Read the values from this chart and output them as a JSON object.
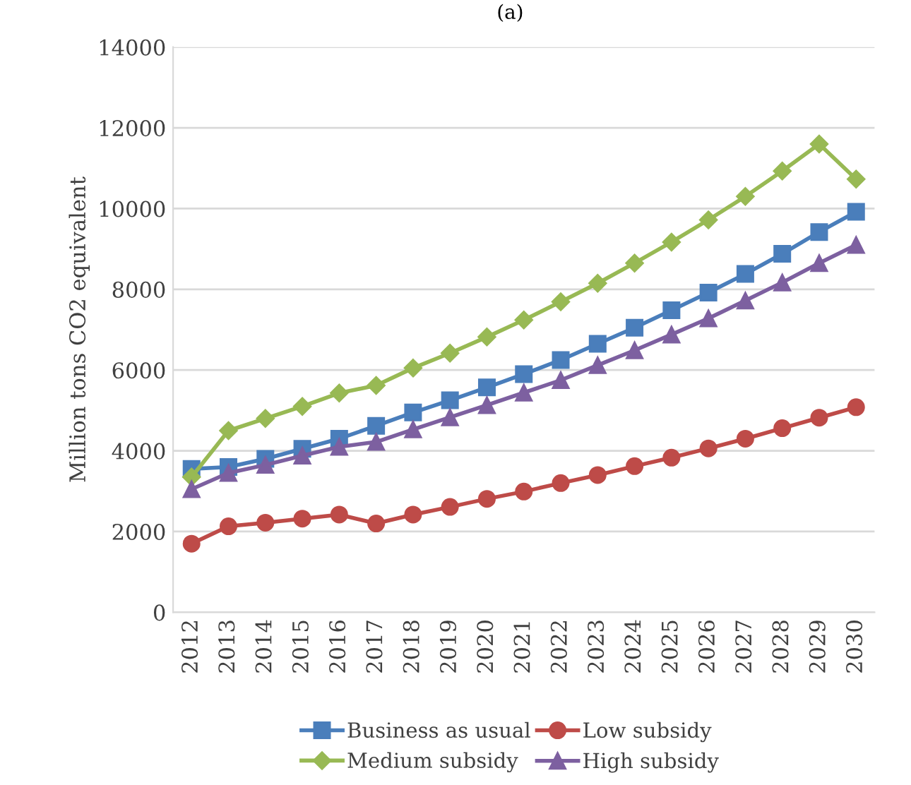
{
  "chart_data": {
    "type": "line",
    "title": "(a)",
    "ylabel": "Million tons CO2 equivalent",
    "categories": [
      "2012",
      "2013",
      "2014",
      "2015",
      "2016",
      "2017",
      "2018",
      "2019",
      "2020",
      "2021",
      "2022",
      "2023",
      "2024",
      "2025",
      "2026",
      "2027",
      "2028",
      "2029",
      "2030"
    ],
    "series": [
      {
        "name": "Business as usual",
        "color": "#4a7ebb",
        "marker": "square",
        "values": [
          3550,
          3600,
          3800,
          4050,
          4300,
          4620,
          4950,
          5250,
          5570,
          5900,
          6250,
          6650,
          7050,
          7480,
          7920,
          8380,
          8880,
          9420,
          9920
        ]
      },
      {
        "name": "Low subsidy",
        "color": "#be4b48",
        "marker": "circle",
        "values": [
          1700,
          2130,
          2220,
          2320,
          2420,
          2200,
          2420,
          2610,
          2810,
          2990,
          3200,
          3400,
          3620,
          3830,
          4060,
          4300,
          4560,
          4820,
          5080
        ]
      },
      {
        "name": "Medium subsidy",
        "color": "#98b954",
        "marker": "diamond",
        "values": [
          3350,
          4500,
          4800,
          5100,
          5430,
          5620,
          6050,
          6420,
          6820,
          7240,
          7690,
          8150,
          8650,
          9170,
          9720,
          10300,
          10930,
          11600,
          10730
        ]
      },
      {
        "name": "High subsidy",
        "color": "#7d60a0",
        "marker": "triangle",
        "values": [
          3050,
          3450,
          3650,
          3880,
          4100,
          4220,
          4530,
          4830,
          5130,
          5440,
          5750,
          6120,
          6490,
          6880,
          7280,
          7720,
          8170,
          8650,
          9100
        ]
      }
    ],
    "ylim": [
      0,
      14000
    ],
    "yticks": [
      0,
      2000,
      4000,
      6000,
      8000,
      10000,
      12000,
      14000
    ],
    "grid": "y",
    "legend": "bottom",
    "line_style": "solid"
  }
}
